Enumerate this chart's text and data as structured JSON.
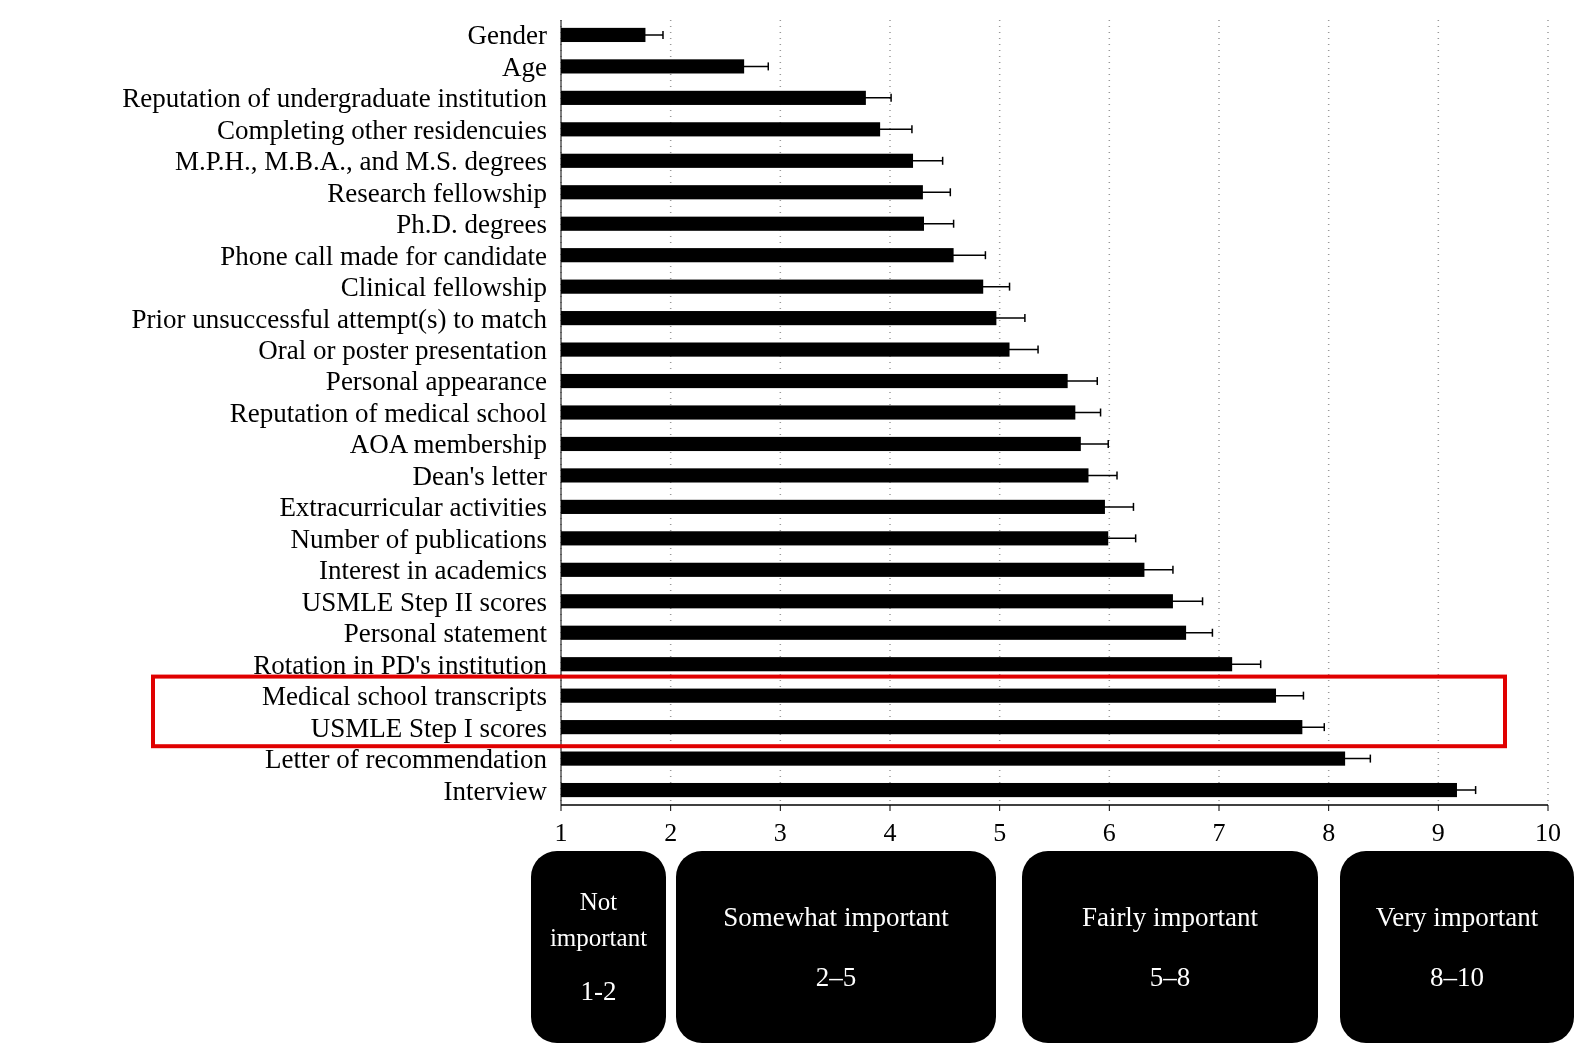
{
  "chart_data": {
    "type": "bar",
    "orientation": "horizontal",
    "categories": [
      "Gender",
      "Age",
      "Reputation of undergraduate institution",
      "Completing other residencuies",
      "M.P.H., M.B.A., and M.S. degrees",
      "Research fellowship",
      "Ph.D. degrees",
      "Phone call made for candidate",
      "Clinical fellowship",
      "Prior unsuccessful attempt(s) to match",
      "Oral or poster presentation",
      "Personal appearance",
      "Reputation of medical school",
      "AOA membership",
      "Dean's letter",
      "Extracurricular activities",
      "Number of publications",
      "Interest in academics",
      "USMLE Step II scores",
      "Personal statement",
      "Rotation in PD's institution",
      "Medical school transcripts",
      "USMLE Step I scores",
      "Letter of recommendation",
      "Interview"
    ],
    "values": [
      1.77,
      2.67,
      3.78,
      3.91,
      4.21,
      4.3,
      4.31,
      4.58,
      4.85,
      4.97,
      5.09,
      5.62,
      5.69,
      5.74,
      5.81,
      5.96,
      5.99,
      6.32,
      6.58,
      6.7,
      7.12,
      7.52,
      7.76,
      8.15,
      9.17
    ],
    "errors": [
      0.16,
      0.22,
      0.23,
      0.29,
      0.27,
      0.25,
      0.27,
      0.29,
      0.24,
      0.26,
      0.26,
      0.27,
      0.23,
      0.25,
      0.26,
      0.26,
      0.25,
      0.26,
      0.27,
      0.24,
      0.26,
      0.25,
      0.2,
      0.23,
      0.17
    ],
    "color": "#000000",
    "xlim": [
      1,
      10
    ],
    "xticks": [
      1,
      2,
      3,
      4,
      5,
      6,
      7,
      8,
      9,
      10
    ],
    "grid": "x",
    "annotations": [
      "Not important",
      "1-2",
      "Somewhat important",
      "2–5",
      "Fairly important",
      "5–8",
      "Very important",
      "8–10"
    ]
  }
}
